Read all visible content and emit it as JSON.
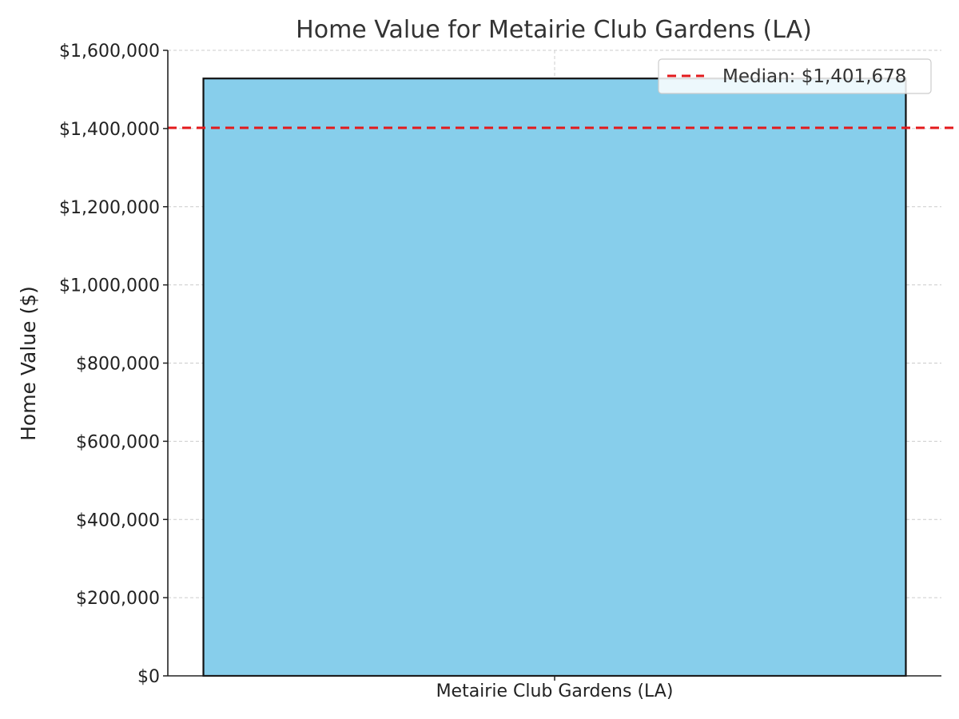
{
  "chart_data": {
    "type": "bar",
    "title": "Home Value for Metairie Club Gardens (LA)",
    "xlabel": "",
    "ylabel": "Home Value ($)",
    "categories": [
      "Metairie Club Gardens (LA)"
    ],
    "values": [
      1528000
    ],
    "ylim": [
      0,
      1600000
    ],
    "yticks": [
      0,
      200000,
      400000,
      600000,
      800000,
      1000000,
      1200000,
      1400000,
      1600000
    ],
    "ytick_labels": [
      "$0",
      "$200,000",
      "$400,000",
      "$600,000",
      "$800,000",
      "$1,000,000",
      "$1,200,000",
      "$1,400,000",
      "$1,600,000"
    ],
    "reference_line": {
      "label": "Median: $1,401,678",
      "value": 1401678,
      "style": "dashed"
    },
    "grid": true,
    "legend_position": "top-right",
    "colors": {
      "bar": "#87CEEB",
      "bar_edge": "#111111",
      "median_line": "#e31a1c",
      "grid": "#cccccc"
    }
  }
}
